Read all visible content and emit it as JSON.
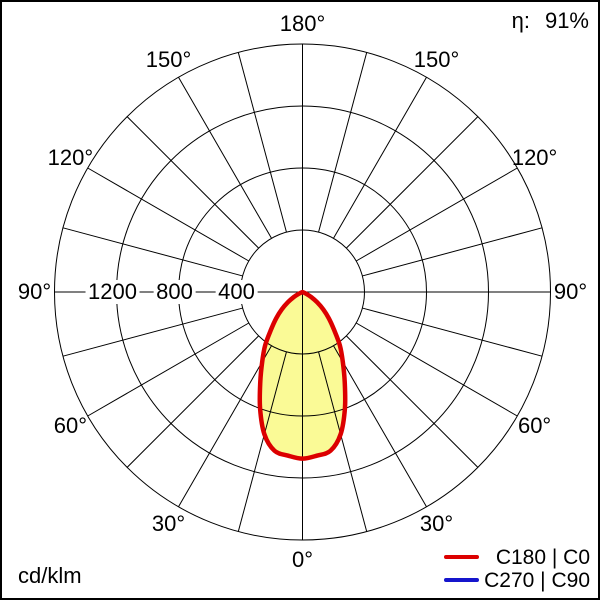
{
  "header": {
    "eta_label": "η:",
    "eta_value": "91%"
  },
  "footer": {
    "unit_label": "cd/klm"
  },
  "legend": {
    "items": [
      {
        "label": "C180 | C0",
        "color": "#dc0000"
      },
      {
        "label": "C270 | C90",
        "color": "#1515cc"
      }
    ]
  },
  "chart_data": {
    "type": "polar",
    "description": "Luminaire luminous intensity distribution curve, 0° at bottom",
    "unit": "cd/klm",
    "efficiency_value": "91%",
    "grid": {
      "r_ticks": [
        400,
        800,
        1200,
        1600
      ],
      "r_tick_labels": [
        "400",
        "800",
        "1200"
      ],
      "r_max": 1600,
      "spoke_step_deg": 15,
      "angle_ticks_deg": [
        0,
        30,
        60,
        90,
        120,
        150,
        180
      ],
      "angle_tick_labels": [
        "0°",
        "30°",
        "60°",
        "90°",
        "120°",
        "150°",
        "180°"
      ],
      "angle_labels_both_sides": true
    },
    "series": [
      {
        "name": "C180 | C0",
        "color": "#dc0000",
        "fill": "#fafa96",
        "symmetric": true,
        "visible": true,
        "gamma_deg": [
          0,
          5,
          10,
          15,
          20,
          25,
          30,
          35,
          40,
          45,
          50,
          55,
          60,
          65,
          70
        ],
        "values_cd_per_klm": [
          1075,
          1060,
          1040,
          950,
          800,
          645,
          520,
          420,
          315,
          240,
          175,
          115,
          65,
          25,
          0
        ]
      },
      {
        "name": "C270 | C90",
        "color": "#1515cc",
        "visible": false
      }
    ]
  }
}
